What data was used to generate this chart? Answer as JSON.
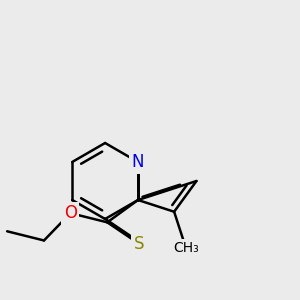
{
  "bg_color": "#ebebeb",
  "atom_colors": {
    "N": "#0000ee",
    "O": "#ee0000",
    "S": "#888800",
    "C": "#000000"
  },
  "bond_color": "#000000",
  "bond_width": 1.8,
  "font_size_atom": 12,
  "font_size_methyl": 10
}
